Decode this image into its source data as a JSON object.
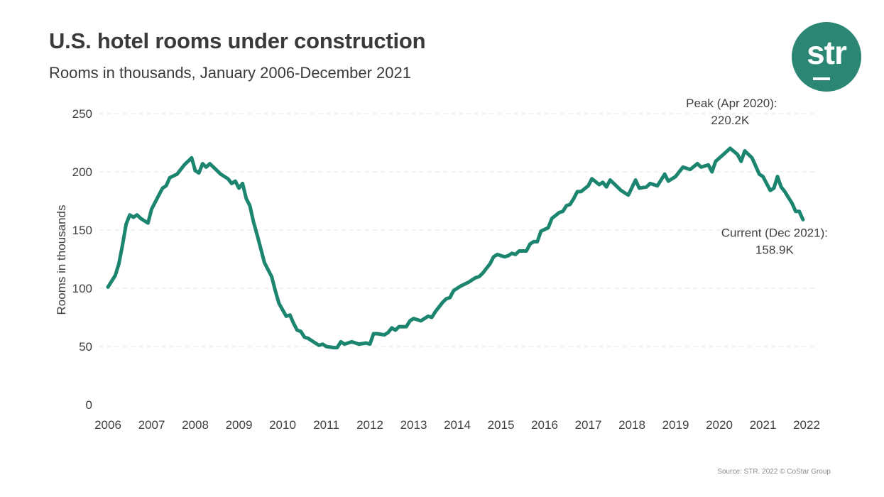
{
  "header": {
    "title": "U.S. hotel rooms under construction",
    "subtitle": "Rooms in thousands, January 2006-December 2021"
  },
  "logo": {
    "text": "str",
    "color": "#2b8773"
  },
  "source": "Source: STR. 2022 © CoStar Group",
  "chart_data": {
    "type": "line",
    "title": "U.S. hotel rooms under construction",
    "subtitle": "Rooms in thousands, January 2006-December 2021",
    "xlabel": "",
    "ylabel": "Rooms in thousands",
    "xlim": [
      "2006-01",
      "2022-01"
    ],
    "ylim": [
      0,
      250
    ],
    "x_ticks": [
      "2006",
      "2007",
      "2008",
      "2009",
      "2010",
      "2011",
      "2012",
      "2013",
      "2014",
      "2015",
      "2016",
      "2017",
      "2018",
      "2019",
      "2020",
      "2021",
      "2022"
    ],
    "y_ticks": [
      0,
      50,
      100,
      150,
      200,
      250
    ],
    "grid": "horizontal dashed",
    "legend": "none",
    "line_color": "#1b8570",
    "annotations": [
      {
        "label": "Peak (Apr 2020):",
        "value_label": "220.2K",
        "x": "2020-04",
        "y": 220.2
      },
      {
        "label": "Current (Dec 2021):",
        "value_label": "158.9K",
        "x": "2021-12",
        "y": 158.9
      }
    ],
    "series": [
      {
        "points": [
          [
            "2006-01",
            101
          ],
          [
            "2006-03",
            111
          ],
          [
            "2006-04",
            121
          ],
          [
            "2006-05",
            137
          ],
          [
            "2006-06",
            155
          ],
          [
            "2006-07",
            163
          ],
          [
            "2006-08",
            161
          ],
          [
            "2006-09",
            163
          ],
          [
            "2006-10",
            160
          ],
          [
            "2006-12",
            156
          ],
          [
            "2007-01",
            168
          ],
          [
            "2007-02",
            174
          ],
          [
            "2007-04",
            186
          ],
          [
            "2007-05",
            188
          ],
          [
            "2007-06",
            195
          ],
          [
            "2007-08",
            198
          ],
          [
            "2007-09",
            202
          ],
          [
            "2007-10",
            206
          ],
          [
            "2007-12",
            212
          ],
          [
            "2008-01",
            201
          ],
          [
            "2008-02",
            199
          ],
          [
            "2008-03",
            207
          ],
          [
            "2008-04",
            204
          ],
          [
            "2008-05",
            207
          ],
          [
            "2008-06",
            204
          ],
          [
            "2008-08",
            198
          ],
          [
            "2008-10",
            194
          ],
          [
            "2008-11",
            190
          ],
          [
            "2008-12",
            192
          ],
          [
            "2009-01",
            186
          ],
          [
            "2009-02",
            190
          ],
          [
            "2009-03",
            177
          ],
          [
            "2009-04",
            171
          ],
          [
            "2009-05",
            157
          ],
          [
            "2009-06",
            146
          ],
          [
            "2009-07",
            134
          ],
          [
            "2009-08",
            122
          ],
          [
            "2009-10",
            110
          ],
          [
            "2009-11",
            98
          ],
          [
            "2009-12",
            87
          ],
          [
            "2010-02",
            76
          ],
          [
            "2010-03",
            77
          ],
          [
            "2010-04",
            70
          ],
          [
            "2010-05",
            64
          ],
          [
            "2010-06",
            63
          ],
          [
            "2010-07",
            58
          ],
          [
            "2010-08",
            57
          ],
          [
            "2010-10",
            53
          ],
          [
            "2010-11",
            51
          ],
          [
            "2010-12",
            52
          ],
          [
            "2011-01",
            50
          ],
          [
            "2011-03",
            49
          ],
          [
            "2011-04",
            49
          ],
          [
            "2011-05",
            54
          ],
          [
            "2011-06",
            52
          ],
          [
            "2011-08",
            54
          ],
          [
            "2011-10",
            52
          ],
          [
            "2011-12",
            53
          ],
          [
            "2012-01",
            52
          ],
          [
            "2012-02",
            61
          ],
          [
            "2012-03",
            61
          ],
          [
            "2012-05",
            60
          ],
          [
            "2012-06",
            62
          ],
          [
            "2012-07",
            66
          ],
          [
            "2012-08",
            64
          ],
          [
            "2012-09",
            67
          ],
          [
            "2012-11",
            67
          ],
          [
            "2012-12",
            72
          ],
          [
            "2013-01",
            74
          ],
          [
            "2013-03",
            72
          ],
          [
            "2013-04",
            74
          ],
          [
            "2013-05",
            76
          ],
          [
            "2013-06",
            75
          ],
          [
            "2013-07",
            80
          ],
          [
            "2013-09",
            88
          ],
          [
            "2013-10",
            91
          ],
          [
            "2013-11",
            92
          ],
          [
            "2013-12",
            98
          ],
          [
            "2014-02",
            102
          ],
          [
            "2014-04",
            105
          ],
          [
            "2014-05",
            107
          ],
          [
            "2014-06",
            109
          ],
          [
            "2014-07",
            110
          ],
          [
            "2014-08",
            113
          ],
          [
            "2014-09",
            117
          ],
          [
            "2014-10",
            121
          ],
          [
            "2014-11",
            127
          ],
          [
            "2014-12",
            129
          ],
          [
            "2015-02",
            127
          ],
          [
            "2015-03",
            128
          ],
          [
            "2015-04",
            130
          ],
          [
            "2015-05",
            129
          ],
          [
            "2015-06",
            132
          ],
          [
            "2015-08",
            132
          ],
          [
            "2015-09",
            138
          ],
          [
            "2015-10",
            140
          ],
          [
            "2015-11",
            140
          ],
          [
            "2015-12",
            149
          ],
          [
            "2016-02",
            152
          ],
          [
            "2016-03",
            160
          ],
          [
            "2016-05",
            165
          ],
          [
            "2016-06",
            166
          ],
          [
            "2016-07",
            171
          ],
          [
            "2016-08",
            172
          ],
          [
            "2016-09",
            177
          ],
          [
            "2016-10",
            183
          ],
          [
            "2016-11",
            183
          ],
          [
            "2017-01",
            188
          ],
          [
            "2017-02",
            194
          ],
          [
            "2017-04",
            189
          ],
          [
            "2017-05",
            191
          ],
          [
            "2017-06",
            187
          ],
          [
            "2017-07",
            193
          ],
          [
            "2017-10",
            184
          ],
          [
            "2017-12",
            180
          ],
          [
            "2018-02",
            193
          ],
          [
            "2018-03",
            186
          ],
          [
            "2018-05",
            187
          ],
          [
            "2018-06",
            190
          ],
          [
            "2018-08",
            188
          ],
          [
            "2018-10",
            198
          ],
          [
            "2018-11",
            192
          ],
          [
            "2019-01",
            196
          ],
          [
            "2019-03",
            204
          ],
          [
            "2019-05",
            202
          ],
          [
            "2019-07",
            207
          ],
          [
            "2019-08",
            204
          ],
          [
            "2019-10",
            206
          ],
          [
            "2019-11",
            200
          ],
          [
            "2019-12",
            209
          ],
          [
            "2020-04",
            220.2
          ],
          [
            "2020-06",
            215
          ],
          [
            "2020-07",
            209
          ],
          [
            "2020-08",
            218
          ],
          [
            "2020-10",
            212
          ],
          [
            "2020-12",
            198
          ],
          [
            "2021-01",
            196
          ],
          [
            "2021-03",
            184
          ],
          [
            "2021-04",
            186
          ],
          [
            "2021-05",
            196
          ],
          [
            "2021-06",
            187
          ],
          [
            "2021-07",
            183
          ],
          [
            "2021-09",
            173
          ],
          [
            "2021-10",
            166
          ],
          [
            "2021-11",
            166
          ],
          [
            "2021-12",
            158.9
          ]
        ]
      }
    ]
  }
}
